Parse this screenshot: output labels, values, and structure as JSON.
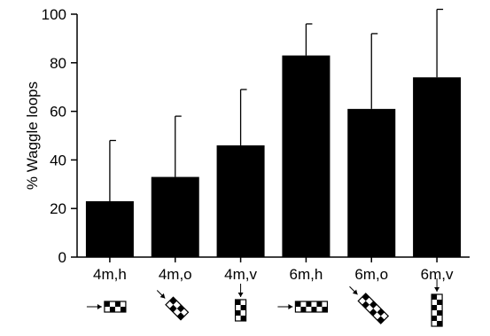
{
  "chart_data": {
    "type": "bar",
    "categories": [
      "4m,h",
      "4m,o",
      "4m,v",
      "6m,h",
      "6m,o",
      "6m,v"
    ],
    "values": [
      23,
      33,
      46,
      83,
      61,
      74
    ],
    "error_upper": [
      48,
      58,
      69,
      96,
      92,
      102
    ],
    "ylabel": "% Waggle loops",
    "xlabel": "",
    "title": "",
    "ylim": [
      0,
      100
    ],
    "yticks": [
      0,
      20,
      40,
      60,
      80,
      100
    ],
    "grid": false,
    "legend": "none",
    "bar_color": "#000000",
    "pictograms": [
      {
        "category": "4m,h",
        "orientation": "horizontal",
        "rows": 2,
        "cols": 4,
        "arrow": "left"
      },
      {
        "category": "4m,o",
        "orientation": "oblique",
        "rows": 2,
        "cols": 4,
        "arrow": "upper-left"
      },
      {
        "category": "4m,v",
        "orientation": "vertical",
        "rows": 2,
        "cols": 4,
        "arrow": "top"
      },
      {
        "category": "6m,h",
        "orientation": "horizontal",
        "rows": 2,
        "cols": 6,
        "arrow": "left"
      },
      {
        "category": "6m,o",
        "orientation": "oblique",
        "rows": 2,
        "cols": 6,
        "arrow": "upper-left"
      },
      {
        "category": "6m,v",
        "orientation": "vertical",
        "rows": 2,
        "cols": 6,
        "arrow": "top"
      }
    ]
  }
}
